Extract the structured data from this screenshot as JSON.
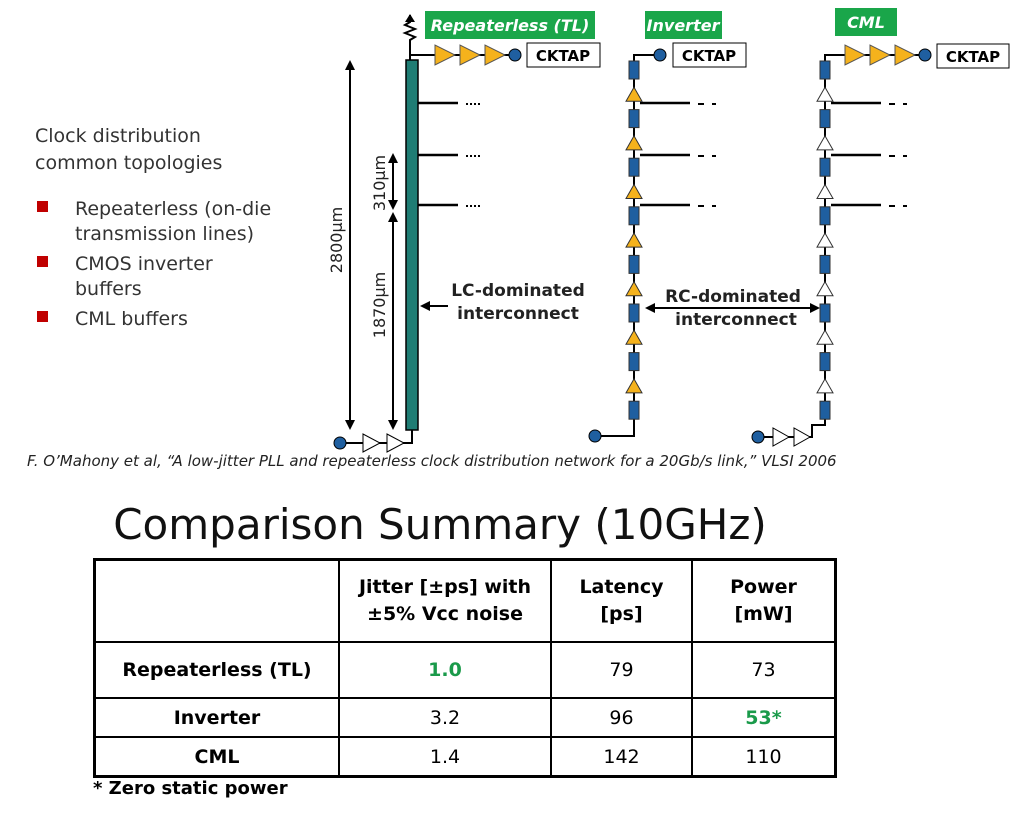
{
  "bullets": {
    "heading": [
      "Clock distribution",
      "common topologies"
    ],
    "items": [
      [
        "Repeaterless (on-die",
        "transmission lines)"
      ],
      [
        "CMOS inverter",
        "buffers"
      ],
      [
        "CML buffers"
      ]
    ]
  },
  "diagram": {
    "labels": {
      "tl": "Repeaterless (TL)",
      "inverter": "Inverter",
      "cml": "CML"
    },
    "cktap": [
      "CKTAP",
      "CKTAP",
      "CKTAP"
    ],
    "dimensions": [
      "2800µm",
      "310µm",
      "1870µm"
    ],
    "lc_note": [
      "LC-dominated",
      "interconnect"
    ],
    "rc_note": [
      "RC-dominated",
      "interconnect"
    ]
  },
  "citation": "F. O’Mahony et al, “A low-jitter PLL and repeaterless clock distribution network for a 20Gb/s link,” VLSI 2006",
  "table": {
    "title": "Comparison Summary (10GHz)",
    "header": [
      [
        "Jitter [±ps] with",
        "±5% Vcc noise"
      ],
      [
        "Latency",
        "[ps]"
      ],
      [
        "Power",
        "[mW]"
      ]
    ],
    "rows": [
      [
        "Repeaterless (TL)",
        "1.0",
        "79",
        "73"
      ],
      [
        "Inverter",
        "3.2",
        "96",
        "53*"
      ],
      [
        "CML",
        "1.4",
        "142",
        "110"
      ]
    ],
    "footnote": "* Zero static power"
  }
}
